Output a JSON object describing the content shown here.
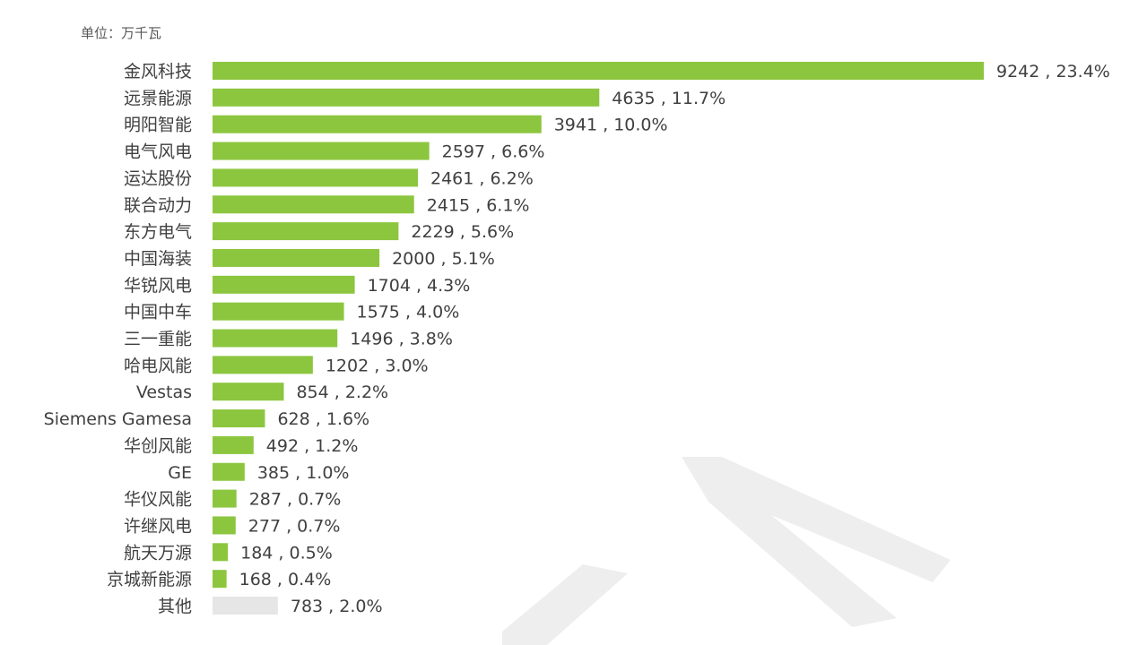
{
  "chart_data": {
    "type": "bar",
    "orientation": "horizontal",
    "unit_label": "单位：万千瓦",
    "colors": {
      "bar": "#8cc63f",
      "other_bar": "#e6e6e6"
    },
    "bars": [
      {
        "category": "金风科技",
        "value": 9242,
        "label": "9242 , 23.4%"
      },
      {
        "category": "远景能源",
        "value": 4635,
        "label": "4635 , 11.7%"
      },
      {
        "category": "明阳智能",
        "value": 3941,
        "label": "3941 , 10.0%"
      },
      {
        "category": "电气风电",
        "value": 2597,
        "label": "2597 , 6.6%"
      },
      {
        "category": "运达股份",
        "value": 2461,
        "label": "2461 , 6.2%"
      },
      {
        "category": "联合动力",
        "value": 2415,
        "label": "2415 , 6.1%"
      },
      {
        "category": "东方电气",
        "value": 2229,
        "label": "2229 , 5.6%"
      },
      {
        "category": "中国海装",
        "value": 2000,
        "label": "2000 , 5.1%"
      },
      {
        "category": "华锐风电",
        "value": 1704,
        "label": "1704 , 4.3%"
      },
      {
        "category": "中国中车",
        "value": 1575,
        "label": "1575 , 4.0%"
      },
      {
        "category": "三一重能",
        "value": 1496,
        "label": "1496 , 3.8%"
      },
      {
        "category": "哈电风能",
        "value": 1202,
        "label": "1202 , 3.0%"
      },
      {
        "category": "Vestas",
        "value": 854,
        "label": "854 , 2.2%"
      },
      {
        "category": "Siemens Gamesa",
        "value": 628,
        "label": "628 , 1.6%"
      },
      {
        "category": "华创风能",
        "value": 492,
        "label": "492 , 1.2%"
      },
      {
        "category": "GE",
        "value": 385,
        "label": "385 , 1.0%"
      },
      {
        "category": "华仪风能",
        "value": 287,
        "label": "287 , 0.7%"
      },
      {
        "category": "许继风电",
        "value": 277,
        "label": "277 , 0.7%"
      },
      {
        "category": "航天万源",
        "value": 184,
        "label": "184 , 0.5%"
      },
      {
        "category": "京城新能源",
        "value": 168,
        "label": "168 , 0.4%"
      },
      {
        "category": "其他",
        "value": 783,
        "label": "783 , 2.0%",
        "is_other": true
      }
    ]
  }
}
